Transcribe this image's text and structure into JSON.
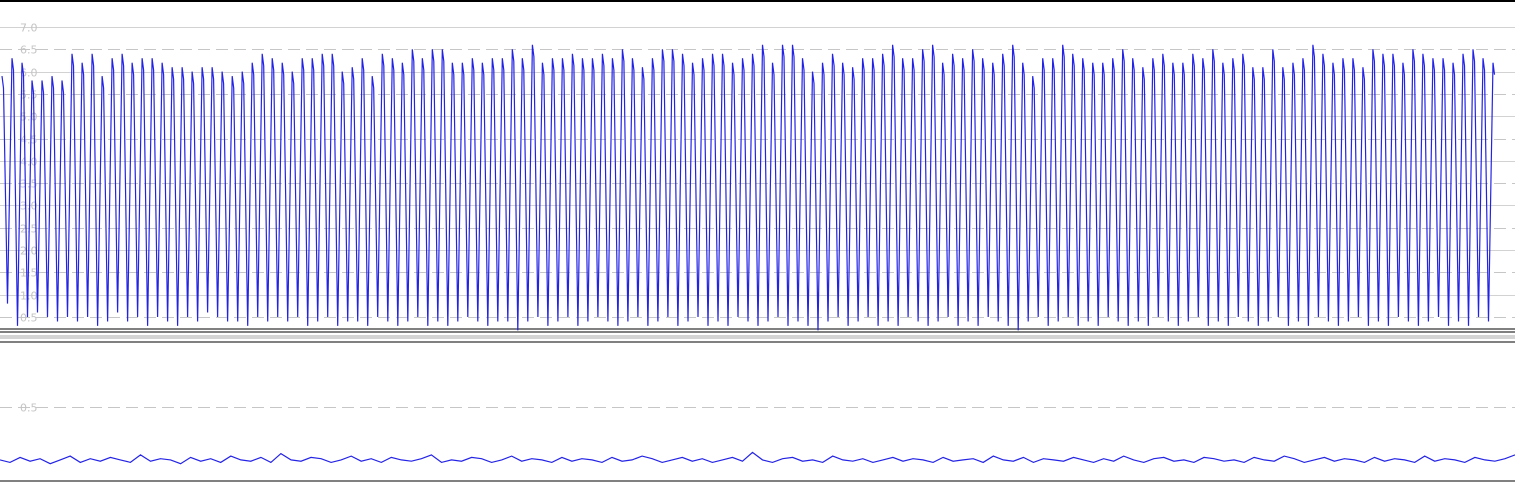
{
  "colors": {
    "signal": "#2323e6",
    "grid_solid": "#d2d2d2",
    "grid_dashed": "#c6c6c6",
    "tick_text": "#c4c4c4",
    "frame": "#000000",
    "splitter": "#c0c0c0"
  },
  "chart_data": [
    {
      "type": "line",
      "panel": "upper",
      "ylim": [
        0.2,
        7.0
      ],
      "y_ticks": [
        "7.0",
        "6.5",
        "6.0",
        "5.5",
        "5.0",
        "4.5",
        "4.0",
        "3.5",
        "3.0",
        "2.5",
        "2.0",
        "1.5",
        "1.0",
        "0.5"
      ],
      "series": [
        {
          "peak_values": [
            5.9,
            6.3,
            6.2,
            5.8,
            5.8,
            5.9,
            5.8,
            6.4,
            6.2,
            6.4,
            5.9,
            6.3,
            6.4,
            6.2,
            6.3,
            6.3,
            6.2,
            6.1,
            6.1,
            6.0,
            6.1,
            6.1,
            6.0,
            5.9,
            6.0,
            6.2,
            6.4,
            6.3,
            6.2,
            6.0,
            6.3,
            6.3,
            6.4,
            6.4,
            6.0,
            6.1,
            6.3,
            5.9,
            6.4,
            6.3,
            6.2,
            6.5,
            6.3,
            6.5,
            6.5,
            6.2,
            6.2,
            6.3,
            6.2,
            6.3,
            6.3,
            6.5,
            6.3,
            6.6,
            6.2,
            6.3,
            6.3,
            6.4,
            6.3,
            6.3,
            6.4,
            6.3,
            6.5,
            6.3,
            6.1,
            6.3,
            6.5,
            6.5,
            6.4,
            6.2,
            6.3,
            6.4,
            6.4,
            6.2,
            6.3,
            6.4,
            6.6,
            6.2,
            6.6,
            6.6,
            6.3,
            6.0,
            6.2,
            6.4,
            6.2,
            6.1,
            6.3,
            6.3,
            6.4,
            6.6,
            6.3,
            6.3,
            6.5,
            6.6,
            6.2,
            6.4,
            6.3,
            6.5,
            6.3,
            6.2,
            6.4,
            6.6,
            6.2,
            5.9,
            6.3,
            6.3,
            6.6,
            6.4,
            6.3,
            6.2,
            6.2,
            6.3,
            6.5,
            6.3,
            6.1,
            6.3,
            6.4,
            6.2,
            6.2,
            6.4,
            6.3,
            6.5,
            6.2,
            6.3,
            6.4,
            6.1,
            6.1,
            6.5,
            6.1,
            6.2,
            6.3,
            6.6,
            6.4,
            6.2,
            6.3,
            6.3,
            6.1,
            6.5,
            6.4,
            6.4,
            6.2,
            6.5,
            6.4,
            6.3,
            6.3,
            6.2,
            6.4,
            6.5,
            6.3,
            6.2,
            6.4
          ],
          "trough_values": [
            0.8,
            0.3,
            0.5,
            0.6,
            0.5,
            0.4,
            0.5,
            0.4,
            0.5,
            0.3,
            0.4,
            0.6,
            0.4,
            0.5,
            0.3,
            0.5,
            0.4,
            0.3,
            0.5,
            0.4,
            0.6,
            0.5,
            0.4,
            0.4,
            0.3,
            0.5,
            0.4,
            0.5,
            0.4,
            0.5,
            0.3,
            0.4,
            0.5,
            0.3,
            0.4,
            0.4,
            0.3,
            0.5,
            0.4,
            0.3,
            0.4,
            0.5,
            0.3,
            0.4,
            0.3,
            0.4,
            0.5,
            0.4,
            0.3,
            0.4,
            0.4,
            0.2,
            0.4,
            0.5,
            0.3,
            0.4,
            0.5,
            0.3,
            0.4,
            0.5,
            0.4,
            0.3,
            0.4,
            0.5,
            0.3,
            0.4,
            0.5,
            0.3,
            0.4,
            0.5,
            0.3,
            0.4,
            0.3,
            0.5,
            0.4,
            0.3,
            0.4,
            0.5,
            0.3,
            0.4,
            0.3,
            0.2,
            0.4,
            0.5,
            0.3,
            0.4,
            0.5,
            0.3,
            0.4,
            0.3,
            0.5,
            0.4,
            0.3,
            0.4,
            0.5,
            0.3,
            0.4,
            0.3,
            0.5,
            0.4,
            0.3,
            0.2,
            0.4,
            0.5,
            0.3,
            0.4,
            0.5,
            0.3,
            0.4,
            0.3,
            0.5,
            0.4,
            0.3,
            0.4,
            0.3,
            0.5,
            0.4,
            0.3,
            0.4,
            0.5,
            0.3,
            0.4,
            0.3,
            0.5,
            0.4,
            0.3,
            0.4,
            0.5,
            0.3,
            0.4,
            0.3,
            0.5,
            0.4,
            0.3,
            0.4,
            0.5,
            0.3,
            0.4,
            0.3,
            0.5,
            0.4,
            0.3,
            0.4,
            0.5,
            0.3,
            0.4,
            0.3,
            0.5,
            0.4
          ]
        }
      ]
    },
    {
      "type": "line",
      "panel": "lower",
      "ylim": [
        -0.15,
        1.0
      ],
      "y_ticks": [
        "0.5"
      ],
      "series": [
        {
          "values": [
            0.08,
            0.06,
            0.1,
            0.07,
            0.09,
            0.05,
            0.08,
            0.11,
            0.06,
            0.09,
            0.07,
            0.1,
            0.08,
            0.06,
            0.12,
            0.07,
            0.09,
            0.08,
            0.05,
            0.1,
            0.07,
            0.09,
            0.06,
            0.11,
            0.08,
            0.07,
            0.1,
            0.06,
            0.13,
            0.08,
            0.07,
            0.1,
            0.09,
            0.06,
            0.08,
            0.11,
            0.07,
            0.09,
            0.06,
            0.1,
            0.08,
            0.07,
            0.09,
            0.12,
            0.06,
            0.08,
            0.07,
            0.1,
            0.09,
            0.06,
            0.08,
            0.11,
            0.07,
            0.09,
            0.08,
            0.06,
            0.1,
            0.07,
            0.09,
            0.08,
            0.06,
            0.1,
            0.07,
            0.08,
            0.11,
            0.09,
            0.06,
            0.08,
            0.1,
            0.07,
            0.09,
            0.06,
            0.08,
            0.1,
            0.07,
            0.14,
            0.08,
            0.06,
            0.09,
            0.1,
            0.07,
            0.08,
            0.06,
            0.11,
            0.08,
            0.07,
            0.09,
            0.06,
            0.08,
            0.1,
            0.07,
            0.09,
            0.08,
            0.06,
            0.1,
            0.07,
            0.08,
            0.09,
            0.06,
            0.11,
            0.08,
            0.07,
            0.1,
            0.06,
            0.09,
            0.08,
            0.07,
            0.1,
            0.08,
            0.06,
            0.09,
            0.07,
            0.11,
            0.08,
            0.06,
            0.09,
            0.1,
            0.07,
            0.08,
            0.06,
            0.1,
            0.09,
            0.07,
            0.08,
            0.06,
            0.1,
            0.08,
            0.07,
            0.11,
            0.09,
            0.06,
            0.08,
            0.1,
            0.07,
            0.09,
            0.08,
            0.06,
            0.1,
            0.07,
            0.09,
            0.08,
            0.06,
            0.11,
            0.07,
            0.09,
            0.08,
            0.06,
            0.1,
            0.08,
            0.07,
            0.09,
            0.12
          ]
        }
      ]
    }
  ]
}
